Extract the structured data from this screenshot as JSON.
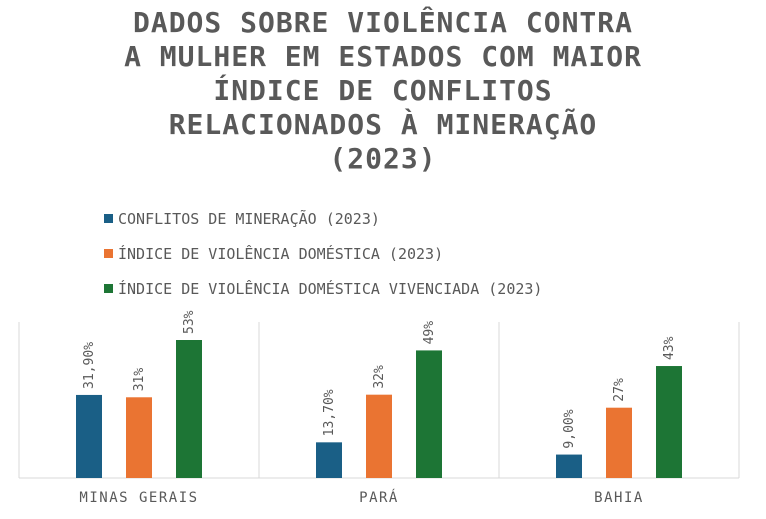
{
  "title": "DADOS SOBRE VIOLÊNCIA CONTRA\nA MULHER EM ESTADOS COM MAIOR\nÍNDICE DE CONFLITOS\nRELACIONADOS À MINERAÇÃO\n(2023)",
  "colors": {
    "series_1": "#1a5f86",
    "series_2": "#ea7432",
    "series_3": "#1d7535",
    "text": "#595959",
    "gridline": "#d9d9d9"
  },
  "chart_data": {
    "type": "bar",
    "title": "DADOS SOBRE VIOLÊNCIA CONTRA A MULHER EM ESTADOS COM MAIOR ÍNDICE DE CONFLITOS RELACIONADOS À MINERAÇÃO (2023)",
    "categories": [
      "MINAS GERAIS",
      "PARÁ",
      "BAHIA"
    ],
    "series": [
      {
        "name": "CONFLITOS DE MINERAÇÃO (2023)",
        "values": [
          31.9,
          13.7,
          9.0
        ],
        "labels": [
          "31,90%",
          "13,70%",
          "9,00%"
        ]
      },
      {
        "name": "ÍNDICE DE VIOLÊNCIA DOMÉSTICA (2023)",
        "values": [
          31,
          32,
          27
        ],
        "labels": [
          "31%",
          "32%",
          "27%"
        ]
      },
      {
        "name": "ÍNDICE DE VIOLÊNCIA DOMÉSTICA VIVENCIADA (2023)",
        "values": [
          53,
          49,
          43
        ],
        "labels": [
          "53%",
          "49%",
          "43%"
        ]
      }
    ],
    "ylim": [
      0,
      60
    ],
    "legend_position": "top-left",
    "grid": false
  }
}
